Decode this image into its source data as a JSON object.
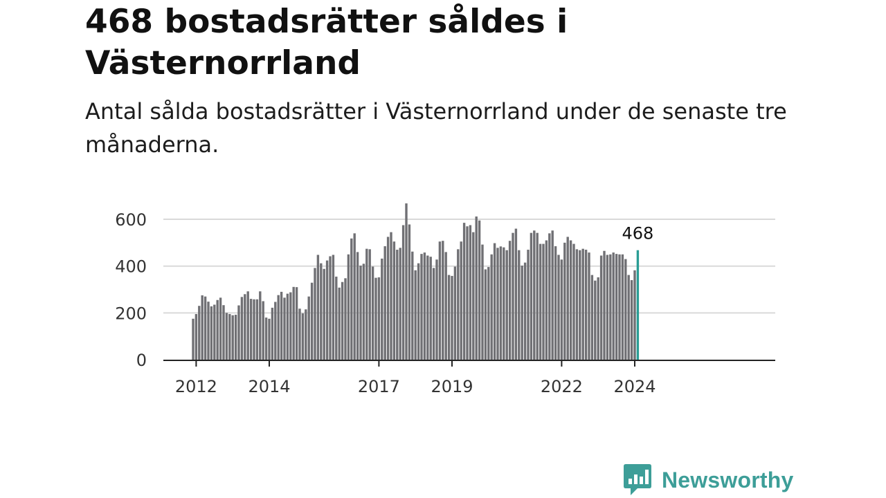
{
  "header": {
    "title": "468 bostadsrätter såldes i Västernorrland",
    "subtitle": "Antal sålda bostadsrätter i Västernorrland under de senaste tre månaderna."
  },
  "brand": {
    "name": "Newsworthy",
    "icon": "newsworthy-chart-bubble-icon",
    "color": "#3d9e98"
  },
  "colors": {
    "bar": "#707074",
    "highlight": "#2a9d95",
    "grid": "#d9d9d9",
    "axis": "#222222"
  },
  "chart_data": {
    "type": "bar",
    "title": "468 bostadsrätter såldes i Västernorrland",
    "subtitle": "Antal sålda bostadsrätter i Västernorrland under de senaste tre månaderna.",
    "x_start": "2011-12",
    "x_end": "2024-02",
    "frequency": "monthly",
    "values": [
      175,
      195,
      230,
      275,
      270,
      248,
      228,
      235,
      255,
      265,
      233,
      200,
      195,
      190,
      192,
      232,
      268,
      280,
      292,
      260,
      258,
      258,
      292,
      250,
      180,
      175,
      222,
      247,
      276,
      290,
      265,
      282,
      288,
      311,
      310,
      218,
      198,
      215,
      270,
      329,
      392,
      448,
      412,
      388,
      424,
      442,
      448,
      355,
      308,
      332,
      348,
      450,
      518,
      540,
      460,
      402,
      410,
      474,
      472,
      398,
      350,
      352,
      432,
      485,
      525,
      545,
      505,
      470,
      478,
      575,
      668,
      578,
      462,
      382,
      412,
      452,
      458,
      445,
      440,
      392,
      428,
      505,
      508,
      460,
      362,
      358,
      398,
      472,
      505,
      585,
      570,
      575,
      545,
      612,
      595,
      492,
      386,
      396,
      450,
      498,
      478,
      484,
      480,
      468,
      508,
      542,
      560,
      468,
      402,
      415,
      470,
      542,
      552,
      542,
      495,
      495,
      510,
      540,
      552,
      485,
      448,
      428,
      500,
      525,
      510,
      495,
      472,
      468,
      474,
      470,
      458,
      362,
      338,
      352,
      445,
      465,
      448,
      450,
      458,
      452,
      450,
      450,
      430,
      362,
      340,
      382,
      468
    ],
    "highlight_last": true,
    "highlight_label": "468",
    "x_ticks": [
      "2012",
      "2014",
      "2017",
      "2019",
      "2022",
      "2024"
    ],
    "y_ticks": [
      0,
      200,
      400,
      600
    ],
    "ylim": [
      0,
      680
    ],
    "grid": true,
    "legend": "none"
  }
}
